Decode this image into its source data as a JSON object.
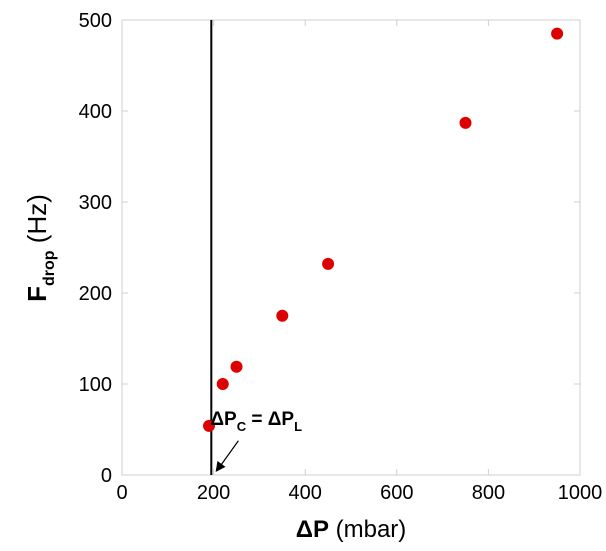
{
  "chart_data": {
    "type": "scatter",
    "xlabel": {
      "main": "ΔP",
      "unit": " (mbar)"
    },
    "ylabel": {
      "main": "F",
      "sub": "drop",
      "unit": " (Hz)"
    },
    "xlim": [
      0,
      1000
    ],
    "ylim": [
      0,
      500
    ],
    "xticks": [
      0,
      200,
      400,
      600,
      800,
      1000
    ],
    "yticks": [
      0,
      100,
      200,
      300,
      400,
      500
    ],
    "grid": false,
    "marker_color": "#dd0000",
    "series": [
      {
        "x": [
          190,
          220,
          250,
          350,
          450,
          750,
          950
        ],
        "y": [
          54,
          100,
          119,
          175,
          232,
          387,
          485
        ]
      }
    ],
    "vline": {
      "x": 195
    },
    "annotation": {
      "parts": [
        "ΔP",
        "C",
        " = ΔP",
        "L"
      ],
      "arrow_target": {
        "x": 200,
        "y": 0
      },
      "text_anchor_data": {
        "x": 300,
        "y": 42
      }
    }
  }
}
